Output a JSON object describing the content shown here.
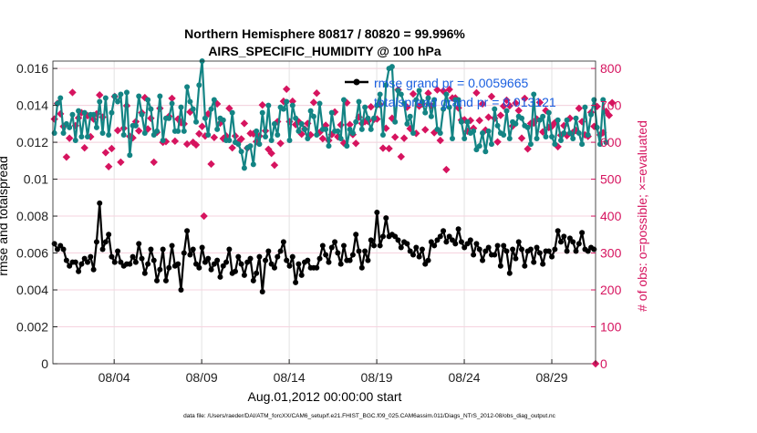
{
  "chart_data": {
    "type": "line",
    "title": "Northern Hemisphere 80817 / 80820 = 99.996%",
    "subtitle": "AIRS_SPECIFIC_HUMIDITY @ 100 hPa",
    "xlabel": "Aug.01,2012 00:00:00 start",
    "ylabel_left": "rmse and totalspread",
    "ylabel_right": "# of obs: o=possible; ×=evaluated",
    "xlim": [
      0,
      31
    ],
    "ylim_left": [
      0,
      0.0164
    ],
    "ylim_right": [
      0,
      820
    ],
    "x_ticks": [
      3.5,
      8.5,
      13.5,
      18.5,
      23.5,
      28.5
    ],
    "x_tick_labels": [
      "08/04",
      "08/09",
      "08/14",
      "08/19",
      "08/24",
      "08/29"
    ],
    "y_left_ticks": [
      0,
      0.002,
      0.004,
      0.006,
      0.008,
      0.01,
      0.012,
      0.014,
      0.016
    ],
    "y_left_tick_labels": [
      "0",
      "0.002",
      "0.004",
      "0.006",
      "0.008",
      "0.01",
      "0.012",
      "0.014",
      "0.016"
    ],
    "y_right_ticks": [
      0,
      100,
      200,
      300,
      400,
      500,
      600,
      700,
      800
    ],
    "y_right_tick_labels": [
      "0",
      "100",
      "200",
      "300",
      "400",
      "500",
      "600",
      "700",
      "800"
    ],
    "footer": "data file: /Users/raeder/DAI/ATM_forcXX/CAM6_setup/f.e21.FHIST_BGC.f09_025.CAM6assim.011/Diags_NTrS_2012-08/obs_diag_output.nc",
    "legend_location": "top-center",
    "series": [
      {
        "name": "rmse",
        "legend_label": "rmse grand pr = 0.0059665",
        "axis": "left",
        "color": "#000000",
        "values": [
          0.0065,
          0.0062,
          0.0064,
          0.0062,
          0.0056,
          0.0053,
          0.0055,
          0.0055,
          0.005,
          0.0054,
          0.0057,
          0.0055,
          0.0058,
          0.0051,
          0.0066,
          0.0087,
          0.0062,
          0.0066,
          0.007,
          0.0058,
          0.0055,
          0.0061,
          0.0055,
          0.0053,
          0.0054,
          0.0054,
          0.0058,
          0.0055,
          0.0065,
          0.0057,
          0.0049,
          0.0054,
          0.0062,
          0.0056,
          0.0045,
          0.0051,
          0.0062,
          0.0045,
          0.0052,
          0.0064,
          0.0053,
          0.0054,
          0.004,
          0.006,
          0.0072,
          0.0059,
          0.0062,
          0.0054,
          0.0052,
          0.0063,
          0.0055,
          0.0057,
          0.0051,
          0.0054,
          0.0056,
          0.0047,
          0.0053,
          0.0055,
          0.0062,
          0.0049,
          0.005,
          0.0058,
          0.0054,
          0.0048,
          0.0055,
          0.0057,
          0.0045,
          0.0049,
          0.0058,
          0.0039,
          0.0056,
          0.0061,
          0.0054,
          0.0052,
          0.0058,
          0.0061,
          0.0066,
          0.0056,
          0.0053,
          0.0058,
          0.0044,
          0.0054,
          0.0048,
          0.0055,
          0.0056,
          0.0052,
          0.0052,
          0.0052,
          0.0057,
          0.0064,
          0.0059,
          0.0055,
          0.0063,
          0.0066,
          0.006,
          0.0054,
          0.0064,
          0.0056,
          0.0056,
          0.0059,
          0.007,
          0.0061,
          0.0052,
          0.0061,
          0.0056,
          0.0067,
          0.0064,
          0.0082,
          0.0064,
          0.0069,
          0.0079,
          0.0069,
          0.007,
          0.0069,
          0.0067,
          0.0063,
          0.0066,
          0.0065,
          0.0061,
          0.0059,
          0.0063,
          0.0058,
          0.0062,
          0.0054,
          0.0056,
          0.0066,
          0.0064,
          0.0067,
          0.0069,
          0.0072,
          0.0066,
          0.0069,
          0.0067,
          0.0065,
          0.0073,
          0.0066,
          0.0063,
          0.0065,
          0.0067,
          0.0059,
          0.0065,
          0.0062,
          0.0056,
          0.0061,
          0.0063,
          0.0059,
          0.0059,
          0.0064,
          0.0053,
          0.0064,
          0.0061,
          0.0049,
          0.0062,
          0.0057,
          0.0066,
          0.0062,
          0.0053,
          0.0061,
          0.0062,
          0.0055,
          0.0063,
          0.006,
          0.0054,
          0.0061,
          0.0061,
          0.0058,
          0.0062,
          0.0072,
          0.0066,
          0.0069,
          0.0061,
          0.0068,
          0.0066,
          0.0061,
          0.0065,
          0.0071,
          0.0062,
          0.0061,
          0.0063,
          0.0062
        ]
      },
      {
        "name": "totalspread",
        "legend_label": "totalspread grand pr = 0.013121",
        "axis": "left",
        "color": "#138484",
        "values": [
          0.0125,
          0.0141,
          0.0144,
          0.0125,
          0.013,
          0.0128,
          0.0135,
          0.0121,
          0.0137,
          0.0123,
          0.0136,
          0.0123,
          0.0135,
          0.0135,
          0.0128,
          0.0142,
          0.0125,
          0.0144,
          0.0124,
          0.0136,
          0.0145,
          0.0142,
          0.0146,
          0.0124,
          0.0147,
          0.0113,
          0.0129,
          0.0129,
          0.0145,
          0.0135,
          0.0125,
          0.0143,
          0.0138,
          0.0124,
          0.0126,
          0.0145,
          0.0121,
          0.0133,
          0.0133,
          0.0141,
          0.0126,
          0.0126,
          0.0139,
          0.0126,
          0.015,
          0.0142,
          0.0138,
          0.0131,
          0.0151,
          0.0164,
          0.0133,
          0.0124,
          0.0138,
          0.0143,
          0.0127,
          0.0133,
          0.0132,
          0.0121,
          0.0121,
          0.0136,
          0.012,
          0.0119,
          0.0115,
          0.0106,
          0.0117,
          0.0118,
          0.0108,
          0.0126,
          0.0119,
          0.0136,
          0.0123,
          0.014,
          0.0121,
          0.013,
          0.0124,
          0.0139,
          0.0138,
          0.0142,
          0.0121,
          0.014,
          0.0133,
          0.0126,
          0.013,
          0.0127,
          0.0122,
          0.0137,
          0.0134,
          0.0124,
          0.0141,
          0.0127,
          0.0127,
          0.0118,
          0.0136,
          0.0126,
          0.0126,
          0.0122,
          0.0143,
          0.0118,
          0.0127,
          0.0125,
          0.0131,
          0.0142,
          0.0127,
          0.0139,
          0.0133,
          0.0127,
          0.0133,
          0.014,
          0.0146,
          0.0124,
          0.0151,
          0.016,
          0.0161,
          0.0131,
          0.0148,
          0.0146,
          0.0141,
          0.013,
          0.0134,
          0.0125,
          0.0143,
          0.0148,
          0.0142,
          0.0136,
          0.0144,
          0.0134,
          0.0143,
          0.0127,
          0.0125,
          0.0138,
          0.0146,
          0.0139,
          0.0122,
          0.0143,
          0.0143,
          0.0131,
          0.0122,
          0.0131,
          0.0125,
          0.0126,
          0.0116,
          0.0118,
          0.0125,
          0.0115,
          0.0126,
          0.0119,
          0.0138,
          0.0129,
          0.0125,
          0.0124,
          0.0137,
          0.0122,
          0.0131,
          0.013,
          0.0134,
          0.0133,
          0.0129,
          0.0128,
          0.0119,
          0.0146,
          0.0122,
          0.0132,
          0.0134,
          0.0123,
          0.0136,
          0.0123,
          0.0119,
          0.0132,
          0.0121,
          0.0125,
          0.0132,
          0.0125,
          0.0122,
          0.0133,
          0.0125,
          0.0119,
          0.0139,
          0.0124,
          0.0135,
          0.0143,
          0.0128,
          0.0119,
          0.0143,
          0.012
        ]
      },
      {
        "name": "nobs",
        "legend_label": "# of obs: o=possible; ×=evaluated",
        "axis": "right",
        "color": "#d6145f",
        "values": [
          663,
          705,
          677,
          643,
          560,
          611,
          735,
          645,
          666,
          680,
          585,
          672,
          615,
          663,
          677,
          728,
          668,
          572,
          534,
          583,
          724,
          632,
          546,
          638,
          699,
          616,
          612,
          656,
          631,
          680,
          721,
          636,
          665,
          546,
          627,
          692,
          600,
          602,
          670,
          719,
          603,
          663,
          653,
          650,
          595,
          682,
          600,
          593,
          623,
          643,
          617,
          677,
          541,
          613,
          704,
          652,
          610,
          617,
          692,
          585,
          617,
          601,
          609,
          651,
          584,
          624,
          623,
          602,
          617,
          701,
          631,
          581,
          570,
          538,
          656,
          597,
          711,
          744,
          656,
          711,
          648,
          656,
          622,
          636,
          651,
          620,
          708,
          733,
          627,
          610,
          646,
          605,
          621,
          682,
          615,
          647,
          598,
          707,
          648,
          621,
          597,
          668,
          651,
          656,
          657,
          696,
          662,
          663,
          702,
          584,
          638,
          583,
          665,
          614,
          742,
          561,
          611,
          695,
          637,
          731,
          624,
          698,
          704,
          634,
          733,
          699,
          626,
          742,
          605,
          739,
          526,
          743,
          720,
          720,
          693,
          660,
          661,
          630,
          659,
          638,
          734,
          659,
          704,
          633,
          668,
          724,
          665,
          601,
          673,
          698,
          714,
          699,
          644,
          706,
          686,
          611,
          719,
          582,
          651,
          652,
          663,
          708,
          628,
          686,
          640,
          643,
          653,
          588,
          619,
          645,
          618,
          665,
          627,
          632,
          692,
          656,
          620,
          616,
          681,
          643,
          697,
          620,
          626,
          684,
          673,
          707
        ]
      }
    ],
    "outliers": [
      {
        "series": "nobs",
        "x": 8.63,
        "y": 400
      }
    ],
    "edge_marker": {
      "series": "nobs",
      "x": 31,
      "y": 0
    }
  }
}
